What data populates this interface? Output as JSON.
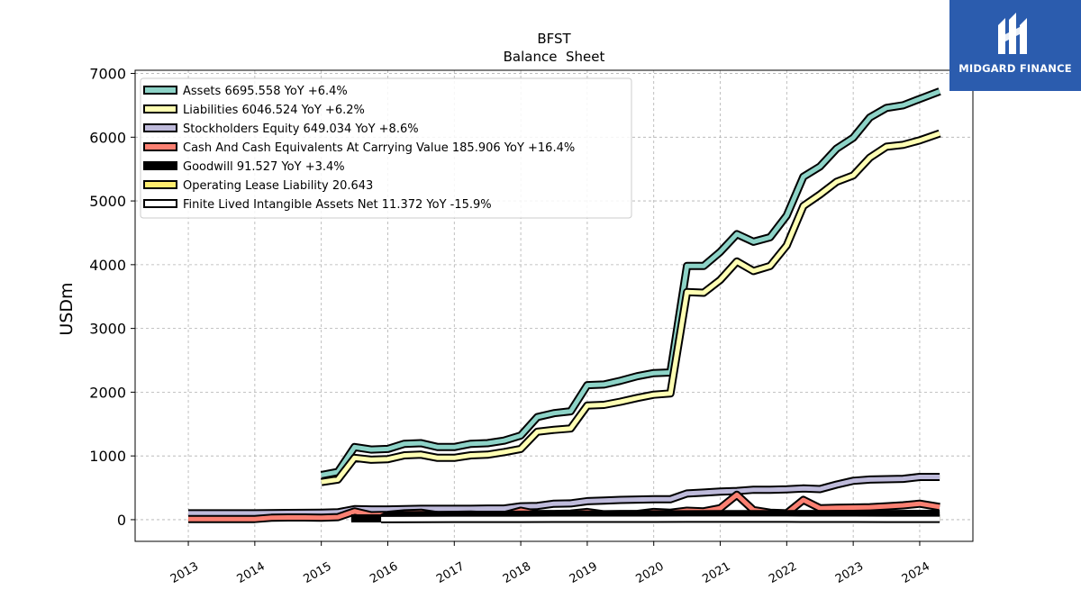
{
  "brand": {
    "name": "MIDGARD FINANCE",
    "logo_icon": "midgard-logo-icon",
    "color": "#2b5cae"
  },
  "chart_data": {
    "type": "line",
    "title": "BFST",
    "subtitle": "Balance  Sheet",
    "ylabel": "USDm",
    "xlabel": "",
    "ylim": [
      -340,
      7050
    ],
    "xlim": [
      2012.2,
      2024.8
    ],
    "yticks": [
      0,
      1000,
      2000,
      3000,
      4000,
      5000,
      6000,
      7000
    ],
    "xticks": [
      2013,
      2014,
      2015,
      2016,
      2017,
      2018,
      2019,
      2020,
      2021,
      2022,
      2023,
      2024
    ],
    "grid": true,
    "legend_position": "top-left",
    "series": [
      {
        "name": "Assets  6695.558 YoY +6.4%",
        "color": "#8dd3c7",
        "points": [
          [
            2015.0,
            700
          ],
          [
            2015.25,
            750
          ],
          [
            2015.5,
            1140
          ],
          [
            2015.75,
            1100
          ],
          [
            2016.0,
            1110
          ],
          [
            2016.25,
            1190
          ],
          [
            2016.5,
            1200
          ],
          [
            2016.75,
            1140
          ],
          [
            2017.0,
            1140
          ],
          [
            2017.25,
            1190
          ],
          [
            2017.5,
            1200
          ],
          [
            2017.75,
            1240
          ],
          [
            2018.0,
            1320
          ],
          [
            2018.25,
            1610
          ],
          [
            2018.5,
            1670
          ],
          [
            2018.75,
            1700
          ],
          [
            2019.0,
            2110
          ],
          [
            2019.25,
            2120
          ],
          [
            2019.5,
            2180
          ],
          [
            2019.75,
            2250
          ],
          [
            2020.0,
            2300
          ],
          [
            2020.25,
            2310
          ],
          [
            2020.5,
            3980
          ],
          [
            2020.75,
            3980
          ],
          [
            2021.0,
            4200
          ],
          [
            2021.25,
            4480
          ],
          [
            2021.5,
            4360
          ],
          [
            2021.75,
            4430
          ],
          [
            2022.0,
            4770
          ],
          [
            2022.25,
            5380
          ],
          [
            2022.5,
            5540
          ],
          [
            2022.75,
            5820
          ],
          [
            2023.0,
            5990
          ],
          [
            2023.25,
            6310
          ],
          [
            2023.5,
            6460
          ],
          [
            2023.75,
            6500
          ],
          [
            2024.0,
            6600
          ],
          [
            2024.3,
            6720
          ]
        ]
      },
      {
        "name": "Liabilities  6046.524 YoY +6.2%",
        "color": "#ffffb3",
        "points": [
          [
            2015.0,
            590
          ],
          [
            2015.25,
            630
          ],
          [
            2015.5,
            970
          ],
          [
            2015.75,
            940
          ],
          [
            2016.0,
            950
          ],
          [
            2016.25,
            1010
          ],
          [
            2016.5,
            1020
          ],
          [
            2016.75,
            970
          ],
          [
            2017.0,
            970
          ],
          [
            2017.25,
            1010
          ],
          [
            2017.5,
            1020
          ],
          [
            2017.75,
            1060
          ],
          [
            2018.0,
            1110
          ],
          [
            2018.25,
            1380
          ],
          [
            2018.5,
            1410
          ],
          [
            2018.75,
            1430
          ],
          [
            2019.0,
            1790
          ],
          [
            2019.25,
            1800
          ],
          [
            2019.5,
            1850
          ],
          [
            2019.75,
            1910
          ],
          [
            2020.0,
            1960
          ],
          [
            2020.25,
            1980
          ],
          [
            2020.5,
            3570
          ],
          [
            2020.75,
            3560
          ],
          [
            2021.0,
            3760
          ],
          [
            2021.25,
            4050
          ],
          [
            2021.5,
            3900
          ],
          [
            2021.75,
            3980
          ],
          [
            2022.0,
            4300
          ],
          [
            2022.25,
            4920
          ],
          [
            2022.5,
            5100
          ],
          [
            2022.75,
            5300
          ],
          [
            2023.0,
            5400
          ],
          [
            2023.25,
            5680
          ],
          [
            2023.5,
            5850
          ],
          [
            2023.75,
            5880
          ],
          [
            2024.0,
            5950
          ],
          [
            2024.3,
            6060
          ]
        ]
      },
      {
        "name": "Stockholders Equity  649.034 YoY +8.6%",
        "color": "#bebada",
        "points": [
          [
            2013.0,
            100
          ],
          [
            2013.5,
            100
          ],
          [
            2014.0,
            100
          ],
          [
            2014.5,
            105
          ],
          [
            2015.0,
            110
          ],
          [
            2015.25,
            115
          ],
          [
            2015.5,
            165
          ],
          [
            2015.75,
            160
          ],
          [
            2016.0,
            160
          ],
          [
            2016.25,
            165
          ],
          [
            2016.5,
            170
          ],
          [
            2016.75,
            170
          ],
          [
            2017.0,
            170
          ],
          [
            2017.25,
            170
          ],
          [
            2017.5,
            175
          ],
          [
            2017.75,
            175
          ],
          [
            2018.0,
            210
          ],
          [
            2018.25,
            215
          ],
          [
            2018.5,
            250
          ],
          [
            2018.75,
            255
          ],
          [
            2019.0,
            290
          ],
          [
            2019.25,
            300
          ],
          [
            2019.5,
            310
          ],
          [
            2019.75,
            315
          ],
          [
            2020.0,
            320
          ],
          [
            2020.25,
            320
          ],
          [
            2020.5,
            410
          ],
          [
            2020.75,
            425
          ],
          [
            2021.0,
            440
          ],
          [
            2021.25,
            450
          ],
          [
            2021.5,
            470
          ],
          [
            2021.75,
            470
          ],
          [
            2022.0,
            475
          ],
          [
            2022.25,
            490
          ],
          [
            2022.5,
            480
          ],
          [
            2022.75,
            550
          ],
          [
            2023.0,
            610
          ],
          [
            2023.25,
            630
          ],
          [
            2023.5,
            635
          ],
          [
            2023.75,
            640
          ],
          [
            2024.0,
            670
          ],
          [
            2024.3,
            670
          ]
        ]
      },
      {
        "name": "Cash And Cash Equivalents At Carrying Value  185.906 YoY +16.4%",
        "color": "#fb8072",
        "points": [
          [
            2013.0,
            10
          ],
          [
            2013.5,
            10
          ],
          [
            2014.0,
            10
          ],
          [
            2014.25,
            30
          ],
          [
            2014.5,
            35
          ],
          [
            2014.75,
            35
          ],
          [
            2015.0,
            30
          ],
          [
            2015.25,
            40
          ],
          [
            2015.5,
            130
          ],
          [
            2015.75,
            70
          ],
          [
            2016.0,
            75
          ],
          [
            2016.25,
            100
          ],
          [
            2016.5,
            110
          ],
          [
            2016.75,
            70
          ],
          [
            2017.0,
            75
          ],
          [
            2017.25,
            80
          ],
          [
            2017.5,
            70
          ],
          [
            2017.75,
            70
          ],
          [
            2018.0,
            140
          ],
          [
            2018.25,
            90
          ],
          [
            2018.5,
            90
          ],
          [
            2018.75,
            95
          ],
          [
            2019.0,
            120
          ],
          [
            2019.25,
            85
          ],
          [
            2019.5,
            90
          ],
          [
            2019.75,
            90
          ],
          [
            2020.0,
            120
          ],
          [
            2020.25,
            110
          ],
          [
            2020.5,
            140
          ],
          [
            2020.75,
            130
          ],
          [
            2021.0,
            180
          ],
          [
            2021.25,
            390
          ],
          [
            2021.5,
            150
          ],
          [
            2021.75,
            110
          ],
          [
            2022.0,
            100
          ],
          [
            2022.25,
            310
          ],
          [
            2022.5,
            180
          ],
          [
            2022.75,
            185
          ],
          [
            2023.0,
            190
          ],
          [
            2023.25,
            195
          ],
          [
            2023.5,
            210
          ],
          [
            2023.75,
            225
          ],
          [
            2024.0,
            250
          ],
          [
            2024.3,
            200
          ]
        ]
      },
      {
        "name": "Goodwill  91.527 YoY +3.4%",
        "color": "#000000",
        "points": [
          [
            2015.45,
            20
          ],
          [
            2015.75,
            20
          ],
          [
            2015.9,
            20
          ],
          [
            2016.0,
            70
          ],
          [
            2016.5,
            72
          ],
          [
            2017.0,
            74
          ],
          [
            2017.5,
            76
          ],
          [
            2018.0,
            78
          ],
          [
            2018.5,
            80
          ],
          [
            2019.0,
            82
          ],
          [
            2019.5,
            84
          ],
          [
            2020.0,
            86
          ],
          [
            2020.5,
            86
          ],
          [
            2021.0,
            87
          ],
          [
            2021.5,
            88
          ],
          [
            2022.0,
            88
          ],
          [
            2022.5,
            89
          ],
          [
            2023.0,
            89
          ],
          [
            2023.5,
            90
          ],
          [
            2024.0,
            91
          ],
          [
            2024.3,
            92
          ]
        ]
      },
      {
        "name": "Operating Lease Liability  20.643",
        "color": "#ffed6f",
        "points": [
          [
            2024.0,
            20.643
          ],
          [
            2024.3,
            20.643
          ]
        ]
      },
      {
        "name": "Finite Lived Intangible Assets Net  11.372 YoY -15.9%",
        "color": "#ffffff",
        "points": [
          [
            2015.9,
            8
          ],
          [
            2016.5,
            10
          ],
          [
            2017.0,
            12
          ],
          [
            2017.5,
            12
          ],
          [
            2018.0,
            12
          ],
          [
            2018.5,
            13
          ],
          [
            2019.0,
            13
          ],
          [
            2019.5,
            13
          ],
          [
            2020.0,
            13
          ],
          [
            2020.5,
            14
          ],
          [
            2021.0,
            14
          ],
          [
            2021.5,
            14
          ],
          [
            2022.0,
            14
          ],
          [
            2022.5,
            13
          ],
          [
            2023.0,
            13
          ],
          [
            2023.5,
            12
          ],
          [
            2024.0,
            12
          ],
          [
            2024.3,
            11.372
          ]
        ]
      }
    ]
  }
}
